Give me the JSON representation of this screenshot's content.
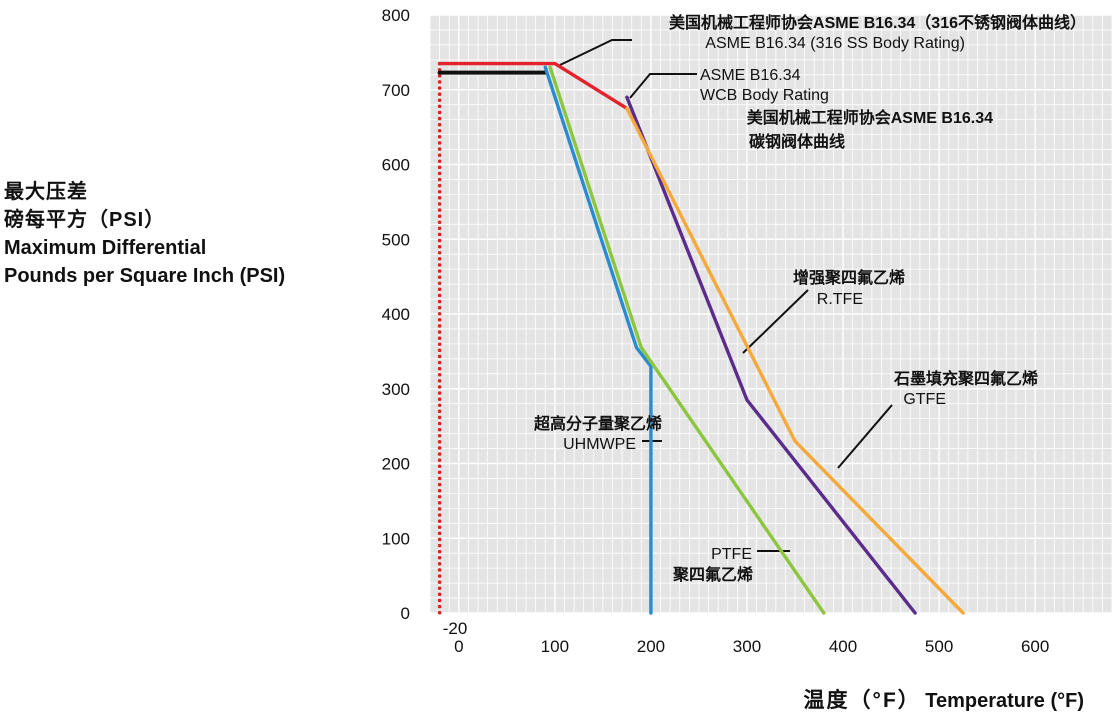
{
  "chart_data": {
    "type": "line",
    "ylabel_zh_1": "最大压差",
    "ylabel_zh_2": "磅每平方（PSI）",
    "ylabel_en_1": "Maximum Differential",
    "ylabel_en_2": "Pounds per Square Inch (PSI)",
    "xlabel_zh": "温度（°F）",
    "xlabel_en": "Temperature (°F)",
    "xlim": [
      -30,
      680
    ],
    "ylim": [
      0,
      800
    ],
    "x_ticks": [
      "0",
      "100",
      "200",
      "300",
      "400",
      "500",
      "600"
    ],
    "x_min_label": "-20",
    "y_ticks": [
      "0",
      "100",
      "200",
      "300",
      "400",
      "500",
      "600",
      "700",
      "800"
    ],
    "grid": true,
    "min_temp_line": {
      "x": -20,
      "color": "#e0201c",
      "style": "dotted"
    },
    "series": [
      {
        "name": "ASME B16.34 (316 SS Body Rating)",
        "color": "#e3222b",
        "points": [
          [
            -20,
            735
          ],
          [
            100,
            735
          ],
          [
            175,
            675
          ]
        ]
      },
      {
        "name": "ASME B16.34 WCB Body Rating",
        "color": "#111111",
        "points": [
          [
            -20,
            723
          ],
          [
            90,
            723
          ]
        ]
      },
      {
        "name": "UHMWPE",
        "color": "#2a8cd0",
        "points": [
          [
            90,
            730
          ],
          [
            185,
            355
          ],
          [
            200,
            330
          ],
          [
            200,
            0
          ]
        ]
      },
      {
        "name": "PTFE",
        "color": "#8cc63f",
        "points": [
          [
            95,
            730
          ],
          [
            190,
            355
          ],
          [
            380,
            0
          ]
        ]
      },
      {
        "name": "R.TFE",
        "color": "#5b2c8b",
        "points": [
          [
            175,
            690
          ],
          [
            300,
            285
          ],
          [
            475,
            0
          ]
        ]
      },
      {
        "name": "GTFE",
        "color": "#f6a93b",
        "points": [
          [
            175,
            675
          ],
          [
            350,
            230
          ],
          [
            525,
            0
          ]
        ]
      }
    ],
    "annotations": [
      {
        "id": "asme-316-zh",
        "text": "美国机械工程师协会ASME B16.34（316不锈钢阀体曲线）"
      },
      {
        "id": "asme-316-en",
        "text": "ASME B16.34 (316 SS Body Rating)"
      },
      {
        "id": "asme-wcb-en-1",
        "text": "ASME  B16.34"
      },
      {
        "id": "asme-wcb-en-2",
        "text": "WCB Body Rating"
      },
      {
        "id": "asme-wcb-zh-1",
        "text": "美国机械工程师协会ASME B16.34"
      },
      {
        "id": "asme-wcb-zh-2",
        "text": "碳钢阀体曲线"
      },
      {
        "id": "rtfe-zh",
        "text": "增强聚四氟乙烯"
      },
      {
        "id": "rtfe-en",
        "text": "R.TFE"
      },
      {
        "id": "gtfe-zh",
        "text": "石墨填充聚四氟乙烯"
      },
      {
        "id": "gtfe-en",
        "text": "GTFE"
      },
      {
        "id": "uhmwpe-zh",
        "text": "超高分子量聚乙烯"
      },
      {
        "id": "uhmwpe-en",
        "text": "UHMWPE"
      },
      {
        "id": "ptfe-en",
        "text": "PTFE"
      },
      {
        "id": "ptfe-zh",
        "text": "聚四氟乙烯"
      }
    ]
  }
}
